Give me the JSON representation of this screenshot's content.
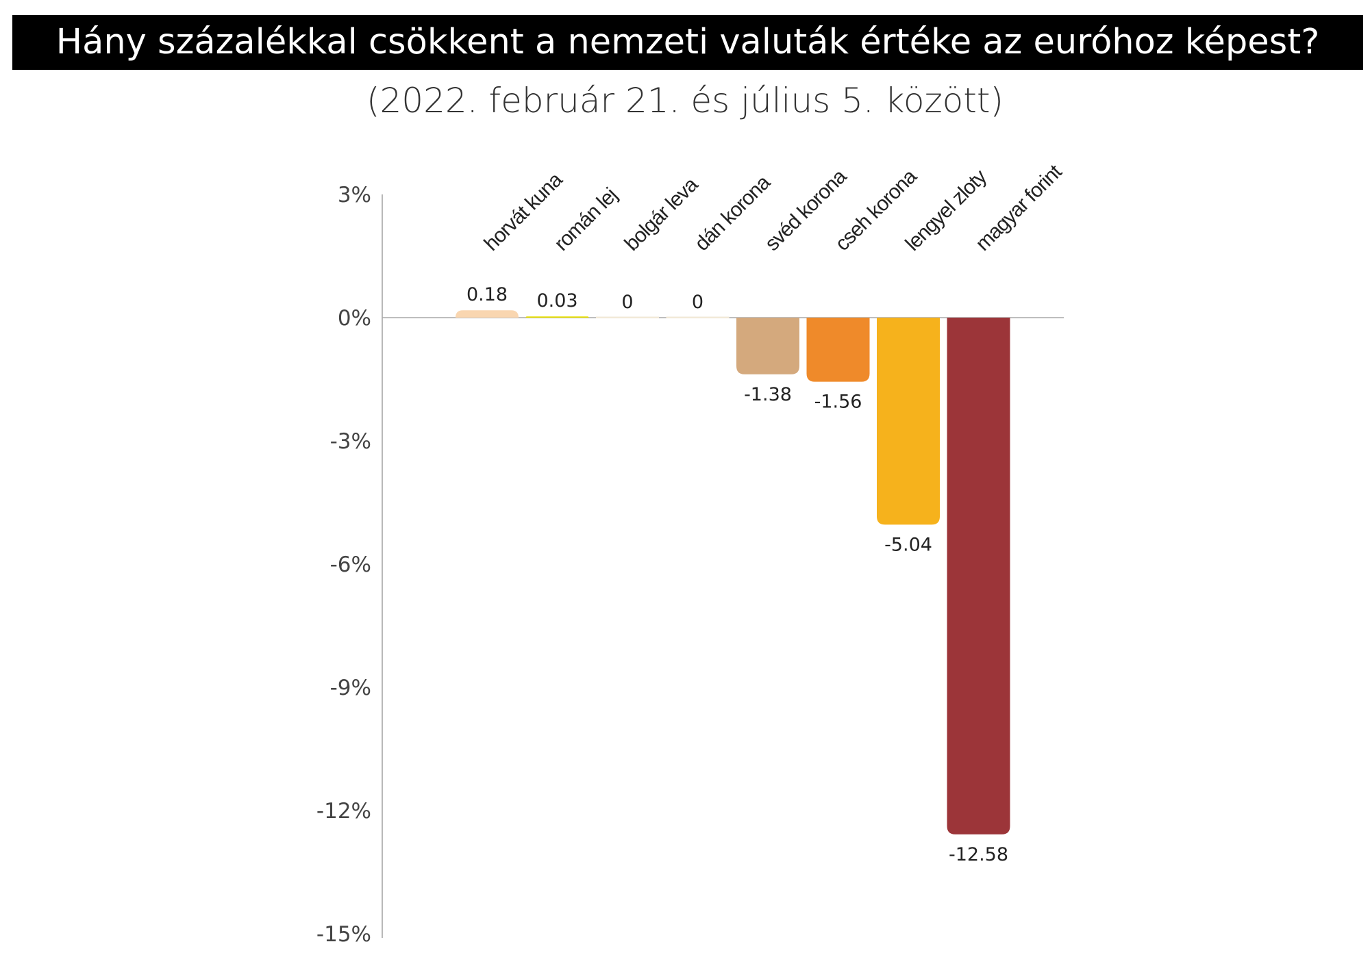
{
  "title": "Hány százalékkal csökkent a nemzeti valuták értéke az euróhoz képest?",
  "subtitle": "(2022. február 21. és július 5. között)",
  "chart_data": {
    "type": "bar",
    "title": "Hány százalékkal csökkent a nemzeti valuták értéke az euróhoz képest?",
    "subtitle": "(2022. február 21. és július 5. között)",
    "categories": [
      "horvát kuna",
      "román lej",
      "bolgár leva",
      "dán korona",
      "svéd korona",
      "cseh korona",
      "lengyel zloty",
      "magyar forint"
    ],
    "values": [
      0.18,
      0.03,
      0,
      0,
      -1.38,
      -1.56,
      -5.04,
      -12.58
    ],
    "value_labels": [
      "0.18",
      "0.03",
      "0",
      "0",
      "-1.38",
      "-1.56",
      "-5.04",
      "-12.58"
    ],
    "colors": [
      "#f9d6b0",
      "#e8e000",
      "#f2e9d8",
      "#f2e9d8",
      "#d4a97d",
      "#ef8a2a",
      "#f6b21c",
      "#9c3539"
    ],
    "ylim": [
      -15,
      3
    ],
    "yticks": [
      3,
      0,
      -3,
      -6,
      -9,
      -12,
      -15
    ],
    "ytick_labels": [
      "3%",
      "0%",
      "-3%",
      "-6%",
      "-9%",
      "-12%",
      "-15%"
    ],
    "xlabel": "",
    "ylabel": "",
    "grid": false,
    "legend": "none"
  }
}
